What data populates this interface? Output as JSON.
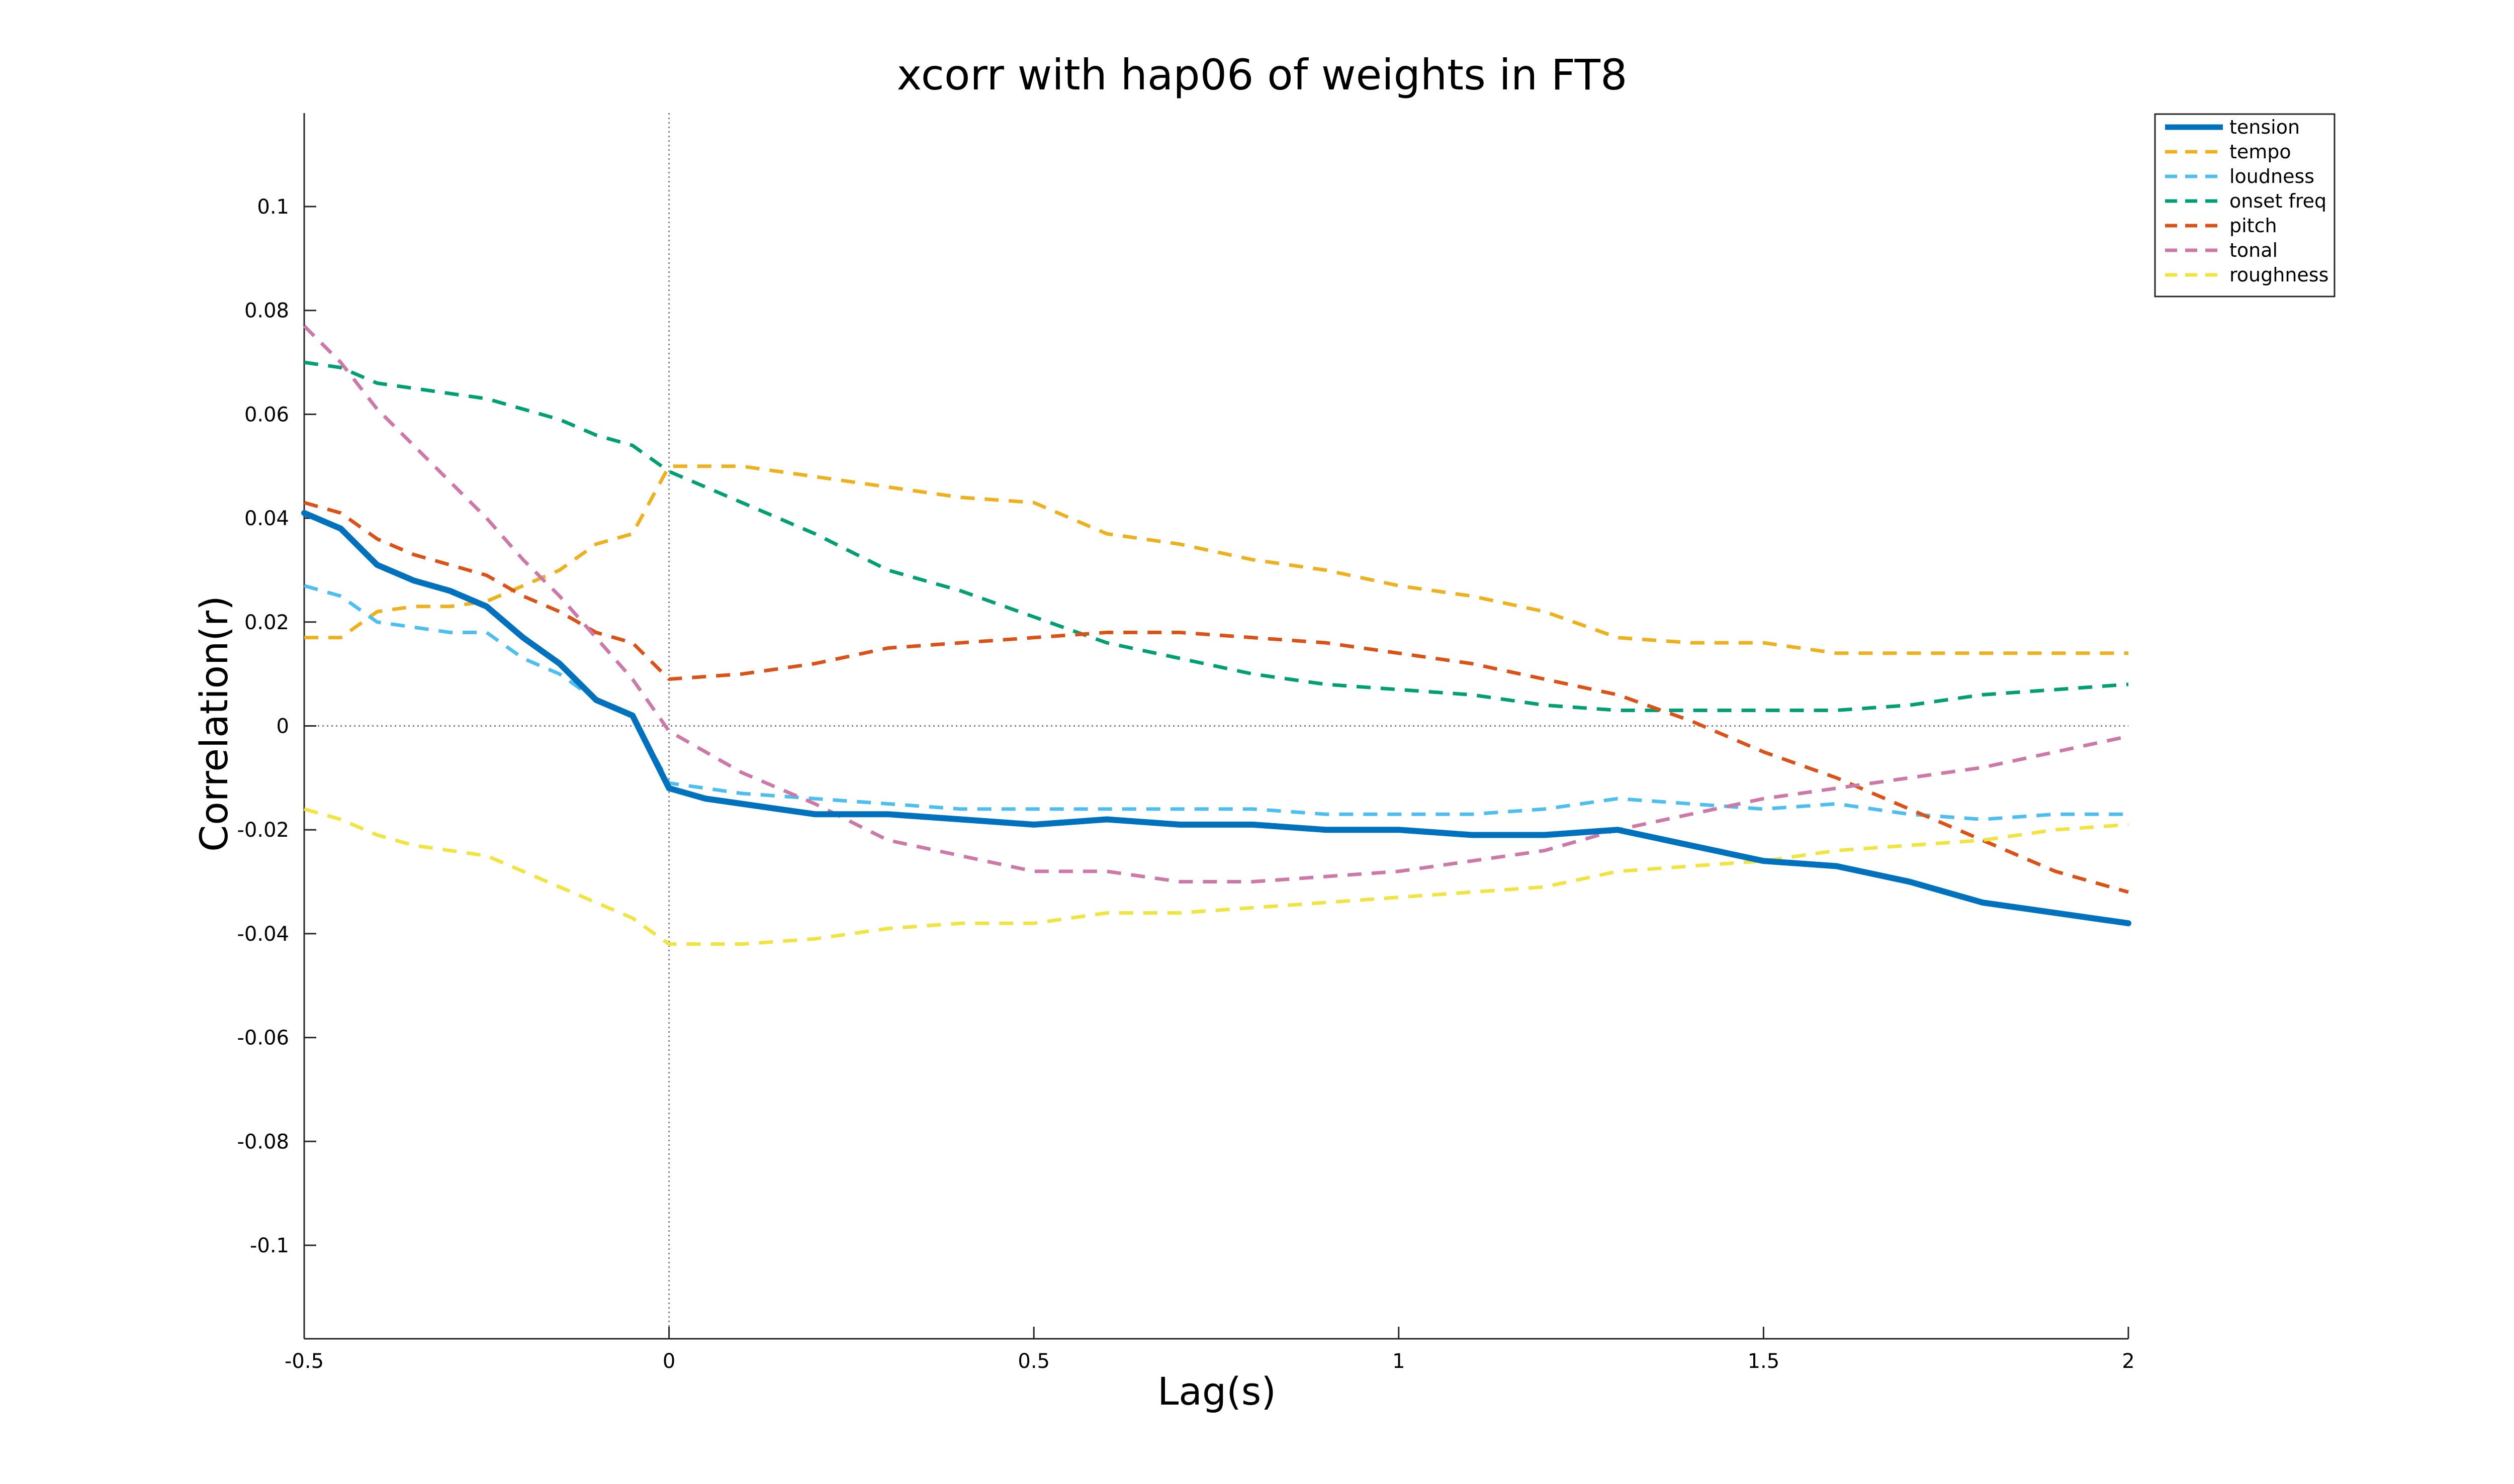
{
  "chart_data": {
    "type": "line",
    "title": "xcorr with hap06 of weights in FT8",
    "xlabel": "Lag(s)",
    "ylabel": "Correlation(r)",
    "xlim": [
      -0.5,
      2
    ],
    "ylim": [
      -0.118,
      0.118
    ],
    "xticks": [
      -0.5,
      0,
      0.5,
      1,
      1.5,
      2
    ],
    "xtick_labels": [
      "-0.5",
      "0",
      "0.5",
      "1",
      "1.5",
      "2"
    ],
    "yticks": [
      0.1,
      0.08,
      0.06,
      0.04,
      0.02,
      0,
      -0.02,
      -0.04,
      -0.06,
      -0.08,
      -0.1
    ],
    "ytick_labels": [
      "0.1",
      "0.08",
      "0.06",
      "0.04",
      "0.02",
      "0",
      "-0.02",
      "-0.04",
      "-0.06",
      "-0.08",
      "-0.1"
    ],
    "grid": false,
    "reference_lines": {
      "x": 0,
      "y": 0
    },
    "legend_position": "top-right",
    "series": [
      {
        "name": "tension",
        "color": "#0072BD",
        "style": "solid",
        "x": [
          -0.5,
          -0.45,
          -0.4,
          -0.35,
          -0.3,
          -0.25,
          -0.2,
          -0.15,
          -0.1,
          -0.05,
          0,
          0.05,
          0.1,
          0.15,
          0.2,
          0.3,
          0.4,
          0.5,
          0.6,
          0.7,
          0.8,
          0.9,
          1.0,
          1.1,
          1.2,
          1.3,
          1.4,
          1.5,
          1.6,
          1.7,
          1.8,
          1.9,
          2.0
        ],
        "y": [
          0.041,
          0.038,
          0.031,
          0.028,
          0.026,
          0.023,
          0.017,
          0.012,
          0.005,
          0.002,
          -0.012,
          -0.014,
          -0.015,
          -0.016,
          -0.017,
          -0.017,
          -0.018,
          -0.019,
          -0.018,
          -0.019,
          -0.019,
          -0.02,
          -0.02,
          -0.021,
          -0.021,
          -0.02,
          -0.023,
          -0.026,
          -0.027,
          -0.03,
          -0.034,
          -0.036,
          -0.038
        ]
      },
      {
        "name": "tempo",
        "color": "#EDB120",
        "style": "dashed",
        "x": [
          -0.5,
          -0.45,
          -0.4,
          -0.35,
          -0.3,
          -0.25,
          -0.2,
          -0.15,
          -0.1,
          -0.05,
          0,
          0.1,
          0.2,
          0.3,
          0.4,
          0.5,
          0.6,
          0.7,
          0.8,
          0.9,
          1.0,
          1.1,
          1.2,
          1.3,
          1.4,
          1.5,
          1.6,
          1.7,
          1.8,
          1.9,
          2.0
        ],
        "y": [
          0.017,
          0.017,
          0.022,
          0.023,
          0.023,
          0.024,
          0.027,
          0.03,
          0.035,
          0.037,
          0.05,
          0.05,
          0.048,
          0.046,
          0.044,
          0.043,
          0.037,
          0.035,
          0.032,
          0.03,
          0.027,
          0.025,
          0.022,
          0.017,
          0.016,
          0.016,
          0.014,
          0.014,
          0.014,
          0.014,
          0.014
        ]
      },
      {
        "name": "loudness",
        "color": "#4DBEEE",
        "style": "dashed",
        "x": [
          -0.5,
          -0.45,
          -0.4,
          -0.35,
          -0.3,
          -0.25,
          -0.2,
          -0.15,
          -0.1,
          -0.05,
          0,
          0.1,
          0.2,
          0.3,
          0.4,
          0.5,
          0.6,
          0.7,
          0.8,
          0.9,
          1.0,
          1.1,
          1.2,
          1.3,
          1.4,
          1.5,
          1.6,
          1.7,
          1.8,
          1.9,
          2.0
        ],
        "y": [
          0.027,
          0.025,
          0.02,
          0.019,
          0.018,
          0.018,
          0.013,
          0.01,
          0.005,
          0.002,
          -0.011,
          -0.013,
          -0.014,
          -0.015,
          -0.016,
          -0.016,
          -0.016,
          -0.016,
          -0.016,
          -0.017,
          -0.017,
          -0.017,
          -0.016,
          -0.014,
          -0.015,
          -0.016,
          -0.015,
          -0.017,
          -0.018,
          -0.017,
          -0.017
        ]
      },
      {
        "name": "onset freq",
        "color": "#009E73",
        "style": "dashed",
        "x": [
          -0.5,
          -0.45,
          -0.4,
          -0.35,
          -0.3,
          -0.25,
          -0.2,
          -0.15,
          -0.1,
          -0.05,
          0,
          0.1,
          0.2,
          0.3,
          0.4,
          0.5,
          0.6,
          0.7,
          0.8,
          0.9,
          1.0,
          1.1,
          1.2,
          1.3,
          1.4,
          1.5,
          1.6,
          1.7,
          1.8,
          1.9,
          2.0
        ],
        "y": [
          0.07,
          0.069,
          0.066,
          0.065,
          0.064,
          0.063,
          0.061,
          0.059,
          0.056,
          0.054,
          0.049,
          0.043,
          0.037,
          0.03,
          0.026,
          0.021,
          0.016,
          0.013,
          0.01,
          0.008,
          0.007,
          0.006,
          0.004,
          0.003,
          0.003,
          0.003,
          0.003,
          0.004,
          0.006,
          0.007,
          0.008
        ]
      },
      {
        "name": "pitch",
        "color": "#D95319",
        "style": "dashed",
        "x": [
          -0.5,
          -0.45,
          -0.4,
          -0.35,
          -0.3,
          -0.25,
          -0.2,
          -0.15,
          -0.1,
          -0.05,
          0,
          0.1,
          0.2,
          0.3,
          0.4,
          0.5,
          0.6,
          0.7,
          0.8,
          0.9,
          1.0,
          1.1,
          1.2,
          1.3,
          1.4,
          1.5,
          1.6,
          1.7,
          1.8,
          1.9,
          2.0
        ],
        "y": [
          0.043,
          0.041,
          0.036,
          0.033,
          0.031,
          0.029,
          0.025,
          0.022,
          0.018,
          0.016,
          0.009,
          0.01,
          0.012,
          0.015,
          0.016,
          0.017,
          0.018,
          0.018,
          0.017,
          0.016,
          0.014,
          0.012,
          0.009,
          0.006,
          0.001,
          -0.005,
          -0.01,
          -0.016,
          -0.022,
          -0.028,
          -0.032
        ]
      },
      {
        "name": "tonal",
        "color": "#CC79A7",
        "style": "dashed",
        "x": [
          -0.5,
          -0.45,
          -0.4,
          -0.35,
          -0.3,
          -0.25,
          -0.2,
          -0.15,
          -0.1,
          -0.05,
          0,
          0.05,
          0.1,
          0.15,
          0.2,
          0.3,
          0.4,
          0.5,
          0.6,
          0.7,
          0.8,
          0.9,
          1.0,
          1.1,
          1.2,
          1.3,
          1.4,
          1.5,
          1.6,
          1.7,
          1.8,
          1.9,
          2.0
        ],
        "y": [
          0.077,
          0.07,
          0.061,
          0.054,
          0.047,
          0.04,
          0.032,
          0.025,
          0.017,
          0.009,
          -0.001,
          -0.005,
          -0.009,
          -0.012,
          -0.015,
          -0.022,
          -0.025,
          -0.028,
          -0.028,
          -0.03,
          -0.03,
          -0.029,
          -0.028,
          -0.026,
          -0.024,
          -0.02,
          -0.017,
          -0.014,
          -0.012,
          -0.01,
          -0.008,
          -0.005,
          -0.002
        ]
      },
      {
        "name": "roughness",
        "color": "#F0E442",
        "style": "dashed",
        "x": [
          -0.5,
          -0.45,
          -0.4,
          -0.35,
          -0.3,
          -0.25,
          -0.2,
          -0.15,
          -0.1,
          -0.05,
          0,
          0.1,
          0.2,
          0.3,
          0.4,
          0.5,
          0.6,
          0.7,
          0.8,
          0.9,
          1.0,
          1.1,
          1.2,
          1.3,
          1.4,
          1.5,
          1.6,
          1.7,
          1.8,
          1.9,
          2.0
        ],
        "y": [
          -0.016,
          -0.018,
          -0.021,
          -0.023,
          -0.024,
          -0.025,
          -0.028,
          -0.031,
          -0.034,
          -0.037,
          -0.042,
          -0.042,
          -0.041,
          -0.039,
          -0.038,
          -0.038,
          -0.036,
          -0.036,
          -0.035,
          -0.034,
          -0.033,
          -0.032,
          -0.031,
          -0.028,
          -0.027,
          -0.026,
          -0.024,
          -0.023,
          -0.022,
          -0.02,
          -0.019
        ]
      }
    ]
  }
}
